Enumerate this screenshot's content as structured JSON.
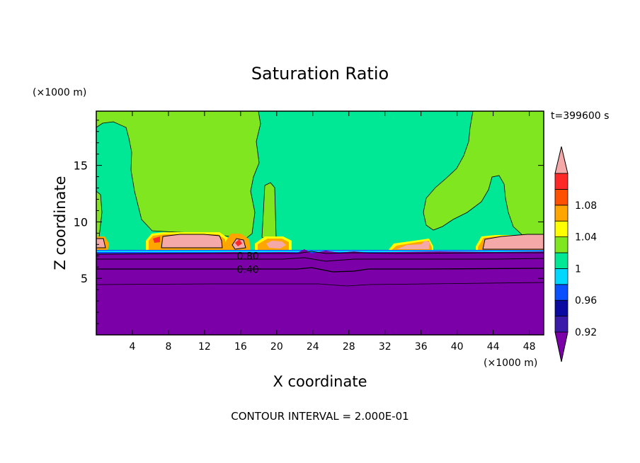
{
  "chart_data": {
    "type": "contour",
    "title": "Saturation Ratio",
    "xlabel": "X coordinate",
    "ylabel": "Z coordinate",
    "x_unit": "(×1000 m)",
    "y_unit": "(×1000 m)",
    "time_label": "t=399600 s",
    "footer": "CONTOUR INTERVAL = 2.000E-01",
    "xlim": [
      0,
      49.6
    ],
    "ylim": [
      0,
      19.8
    ],
    "x_ticks": [
      4,
      8,
      12,
      16,
      20,
      24,
      28,
      32,
      36,
      40,
      44,
      48
    ],
    "y_ticks": [
      5,
      10,
      15
    ],
    "x_tick_labels": [
      "4",
      "8",
      "12",
      "16",
      "20",
      "24",
      "28",
      "32",
      "36",
      "40",
      "44",
      "48"
    ],
    "y_tick_labels": [
      "5",
      "10",
      "15"
    ],
    "contour_labels": [
      {
        "text": "0.80",
        "x": 16.8,
        "z": 7.0
      },
      {
        "text": "0.40",
        "x": 16.8,
        "z": 5.8
      }
    ],
    "colorbar": {
      "levels": [
        0.92,
        0.94,
        0.96,
        0.98,
        1.0,
        1.02,
        1.04,
        1.06,
        1.08,
        1.1
      ],
      "labels": [
        "0.92",
        "0.96",
        "1",
        "1.04",
        "1.08"
      ],
      "colors": [
        "#7b00a8",
        "#3a1aa8",
        "#0a0aa0",
        "#0a50ff",
        "#00d7ff",
        "#00e896",
        "#7fe620",
        "#ffff00",
        "#ffa500",
        "#ff5000",
        "#ff2828",
        "#f5a8a8"
      ]
    },
    "regions": {
      "dry_layer_top_z": 7.3,
      "dry_color": "#7b00a8",
      "base_color": "#00e896",
      "upper_color": "#7fe620",
      "supersat_color": "#f5a8a8"
    }
  }
}
